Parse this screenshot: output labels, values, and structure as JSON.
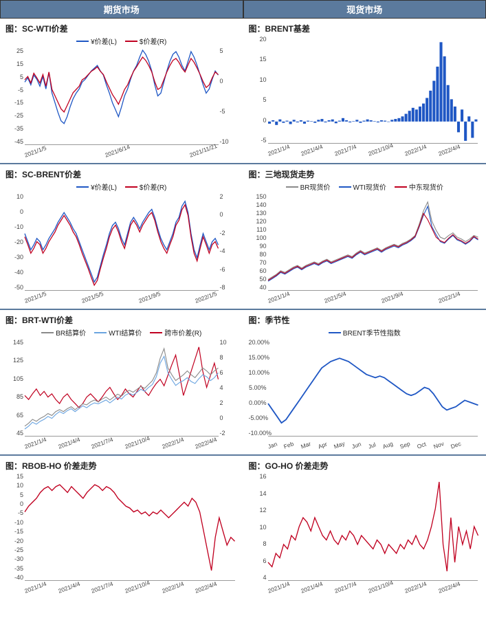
{
  "headers": {
    "left": "期货市场",
    "right": "现货市场"
  },
  "colors": {
    "blue": "#1f57c4",
    "red": "#c00020",
    "gray": "#8a8a8a",
    "lightblue": "#6aa4e0",
    "header_bg": "#5b7a9d",
    "grid": "#999999",
    "text": "#222222"
  },
  "panels": [
    {
      "title": "图：SC-WTI价差",
      "legend": [
        {
          "label": "¥价差(L)",
          "color": "#1f57c4"
        },
        {
          "label": "$价差(R)",
          "color": "#c00020"
        }
      ],
      "yLeft": {
        "min": -45,
        "max": 25,
        "step": 10
      },
      "yRight": {
        "min": -10,
        "max": 5,
        "step": 5
      },
      "xLabels": [
        "2021/1/5",
        "2021/6/14",
        "2021/11/21"
      ],
      "series": [
        {
          "color": "#1f57c4",
          "axis": "left",
          "width": 1.3,
          "values": [
            0,
            3,
            -2,
            5,
            2,
            -3,
            4,
            -5,
            7,
            -8,
            -15,
            -22,
            -28,
            -30,
            -25,
            -18,
            -12,
            -8,
            -5,
            0,
            2,
            5,
            8,
            10,
            12,
            8,
            5,
            -2,
            -8,
            -15,
            -20,
            -25,
            -18,
            -10,
            -5,
            2,
            8,
            12,
            18,
            23,
            20,
            15,
            8,
            -2,
            -10,
            -8,
            0,
            8,
            15,
            20,
            22,
            18,
            12,
            8,
            15,
            22,
            18,
            12,
            5,
            -2,
            -8,
            -5,
            2,
            8,
            5
          ]
        },
        {
          "color": "#c00020",
          "axis": "right",
          "width": 1.3,
          "values": [
            0,
            0.5,
            -0.5,
            1,
            0.3,
            -0.5,
            0.8,
            -1,
            1.2,
            -1.5,
            -2.5,
            -3.5,
            -4.5,
            -5,
            -4,
            -3,
            -2,
            -1.5,
            -1,
            0,
            0.3,
            0.8,
            1.3,
            1.6,
            2,
            1.3,
            0.8,
            -0.3,
            -1.3,
            -2.3,
            -3,
            -3.8,
            -2.7,
            -1.5,
            -0.8,
            0.3,
            1.3,
            2,
            2.8,
            3.5,
            3,
            2.2,
            1.2,
            -0.3,
            -1.5,
            -1.2,
            0,
            1.2,
            2.2,
            3,
            3.3,
            2.7,
            1.8,
            1.2,
            2.3,
            3.3,
            2.7,
            1.8,
            0.8,
            -0.3,
            -1.2,
            -0.8,
            0.3,
            1.2,
            0.8
          ]
        }
      ]
    },
    {
      "title": "图：BRENT基差",
      "legend": [],
      "yLeft": {
        "min": -5,
        "max": 20,
        "step": 5
      },
      "yRight": null,
      "xLabels": [
        "2021/1/4",
        "2021/4/4",
        "2021/7/4",
        "2021/10/4",
        "2022/1/4",
        "2022/4/4"
      ],
      "series": [
        {
          "type": "bar",
          "color": "#1f57c4",
          "values": [
            -0.5,
            0.3,
            -0.8,
            0.5,
            -0.3,
            0.2,
            -0.6,
            0.4,
            -0.2,
            0.3,
            -0.5,
            0.2,
            0.1,
            -0.3,
            0.4,
            0.6,
            -0.2,
            0.3,
            0.5,
            -0.4,
            0.2,
            0.8,
            0.3,
            -0.2,
            0.1,
            0.4,
            -0.3,
            0.2,
            0.5,
            0.3,
            0.1,
            -0.2,
            0.3,
            0.2,
            -0.1,
            0.4,
            0.6,
            0.8,
            1.2,
            1.8,
            2.5,
            3.2,
            2.8,
            3.5,
            4.2,
            5.5,
            7.2,
            9.5,
            12.8,
            18.5,
            15.2,
            8.5,
            5.2,
            3.5,
            -2.5,
            2.8,
            -4.5,
            1.2,
            -3.8,
            0.5
          ]
        }
      ]
    },
    {
      "title": "图：SC-BRENT价差",
      "legend": [
        {
          "label": "¥价差(L)",
          "color": "#1f57c4"
        },
        {
          "label": "$价差(R)",
          "color": "#c00020"
        }
      ],
      "yLeft": {
        "min": -50,
        "max": 10,
        "step": 10
      },
      "yRight": {
        "min": -8,
        "max": 2,
        "step": 2
      },
      "xLabels": [
        "2021/1/5",
        "2021/5/5",
        "2021/9/5",
        "2022/1/5"
      ],
      "series": [
        {
          "color": "#1f57c4",
          "axis": "left",
          "width": 1.3,
          "values": [
            -15,
            -20,
            -25,
            -22,
            -18,
            -20,
            -25,
            -22,
            -18,
            -15,
            -12,
            -8,
            -5,
            -2,
            -5,
            -8,
            -12,
            -15,
            -20,
            -25,
            -30,
            -35,
            -40,
            -45,
            -42,
            -35,
            -28,
            -22,
            -15,
            -10,
            -8,
            -12,
            -18,
            -22,
            -15,
            -8,
            -5,
            -8,
            -12,
            -8,
            -5,
            -2,
            0,
            -5,
            -12,
            -18,
            -22,
            -25,
            -20,
            -15,
            -8,
            -5,
            2,
            5,
            -2,
            -15,
            -25,
            -30,
            -22,
            -15,
            -20,
            -25,
            -20,
            -18,
            -22
          ]
        },
        {
          "color": "#c00020",
          "axis": "right",
          "width": 1.3,
          "values": [
            -2.5,
            -3.3,
            -4.2,
            -3.7,
            -3,
            -3.3,
            -4.2,
            -3.7,
            -3,
            -2.5,
            -2,
            -1.3,
            -0.8,
            -0.3,
            -0.8,
            -1.3,
            -2,
            -2.5,
            -3.3,
            -4.2,
            -5,
            -5.8,
            -6.7,
            -7.5,
            -7,
            -5.8,
            -4.7,
            -3.7,
            -2.5,
            -1.7,
            -1.3,
            -2,
            -3,
            -3.7,
            -2.5,
            -1.3,
            -0.8,
            -1.3,
            -2,
            -1.3,
            -0.8,
            -0.3,
            0,
            -0.8,
            -2,
            -3,
            -3.7,
            -4.2,
            -3.3,
            -2.5,
            -1.3,
            -0.8,
            0.3,
            0.8,
            -0.3,
            -2.5,
            -4.2,
            -5,
            -3.7,
            -2.5,
            -3.3,
            -4.2,
            -3.3,
            -3,
            -3.7
          ]
        }
      ]
    },
    {
      "title": "图：三地现货走势",
      "legend": [
        {
          "label": "BR现货价",
          "color": "#8a8a8a"
        },
        {
          "label": "WTI现货价",
          "color": "#1f57c4"
        },
        {
          "label": "中东现货价",
          "color": "#c00020"
        }
      ],
      "yLeft": {
        "min": 40,
        "max": 150,
        "step": 10
      },
      "yRight": null,
      "xLabels": [
        "2021/1/4",
        "2021/5/4",
        "2021/9/4",
        "2022/1/4"
      ],
      "series": [
        {
          "color": "#8a8a8a",
          "axis": "left",
          "width": 1.1,
          "values": [
            52,
            55,
            58,
            62,
            60,
            63,
            66,
            68,
            65,
            68,
            70,
            72,
            70,
            73,
            75,
            72,
            74,
            76,
            78,
            80,
            78,
            82,
            85,
            82,
            84,
            86,
            88,
            85,
            88,
            90,
            92,
            90,
            93,
            95,
            98,
            102,
            115,
            130,
            140,
            118,
            108,
            100,
            98,
            102,
            105,
            100,
            98,
            95,
            98,
            102,
            100
          ]
        },
        {
          "color": "#1f57c4",
          "axis": "left",
          "width": 1.1,
          "values": [
            50,
            53,
            56,
            60,
            58,
            61,
            64,
            66,
            63,
            66,
            68,
            70,
            68,
            71,
            73,
            70,
            72,
            74,
            76,
            78,
            76,
            80,
            83,
            80,
            82,
            84,
            86,
            83,
            86,
            88,
            90,
            88,
            91,
            93,
            96,
            100,
            112,
            125,
            135,
            112,
            103,
            95,
            93,
            98,
            102,
            97,
            95,
            92,
            95,
            100,
            97
          ]
        },
        {
          "color": "#c00020",
          "axis": "left",
          "width": 1.1,
          "values": [
            51,
            54,
            57,
            61,
            59,
            62,
            65,
            67,
            64,
            67,
            69,
            71,
            69,
            72,
            74,
            71,
            73,
            75,
            77,
            79,
            77,
            81,
            84,
            81,
            83,
            85,
            87,
            84,
            87,
            89,
            91,
            89,
            92,
            94,
            97,
            101,
            113,
            127,
            120,
            110,
            100,
            96,
            94,
            99,
            103,
            98,
            96,
            93,
            96,
            101,
            98
          ]
        }
      ]
    },
    {
      "title": "图：BRT-WTI价差",
      "legend": [
        {
          "label": "BR结算价",
          "color": "#8a8a8a"
        },
        {
          "label": "WTI结算价",
          "color": "#6aa4e0"
        },
        {
          "label": "跨市价差(R)",
          "color": "#c00020"
        }
      ],
      "yLeft": {
        "min": 45,
        "max": 145,
        "step": 20
      },
      "yRight": {
        "min": -2,
        "max": 10,
        "step": 2
      },
      "xLabels": [
        "2021/1/4",
        "2021/4/4",
        "2021/7/4",
        "2021/10/4",
        "2022/1/4",
        "2022/4/4"
      ],
      "series": [
        {
          "color": "#c00020",
          "axis": "right",
          "width": 1.2,
          "values": [
            3,
            2.5,
            3.2,
            3.8,
            3,
            3.5,
            2.8,
            3.2,
            2.5,
            2,
            2.8,
            3.2,
            2.5,
            2,
            1.5,
            2,
            2.8,
            3.2,
            2.7,
            2.2,
            2.8,
            3.5,
            4,
            3.2,
            2.5,
            3,
            3.8,
            3.2,
            2.8,
            3.5,
            4.2,
            3.5,
            3,
            3.8,
            4.5,
            5,
            4.2,
            5.5,
            6.8,
            8,
            5.5,
            3,
            4.5,
            6,
            7.5,
            9,
            6,
            4,
            5.5,
            7,
            5
          ]
        },
        {
          "color": "#8a8a8a",
          "axis": "left",
          "width": 1.1,
          "values": [
            55,
            58,
            62,
            60,
            63,
            65,
            68,
            66,
            70,
            72,
            70,
            73,
            75,
            72,
            75,
            78,
            77,
            80,
            82,
            80,
            83,
            85,
            82,
            85,
            88,
            86,
            90,
            92,
            90,
            93,
            96,
            94,
            98,
            102,
            110,
            125,
            135,
            115,
            108,
            102,
            105,
            108,
            112,
            108,
            105,
            110,
            115,
            112,
            108,
            112,
            115
          ]
        },
        {
          "color": "#6aa4e0",
          "axis": "left",
          "width": 1.1,
          "values": [
            52,
            55,
            59,
            57,
            60,
            62,
            65,
            63,
            67,
            70,
            68,
            71,
            73,
            70,
            73,
            76,
            74,
            77,
            79,
            78,
            80,
            82,
            79,
            82,
            85,
            83,
            87,
            89,
            87,
            90,
            93,
            91,
            95,
            98,
            106,
            120,
            127,
            110,
            103,
            97,
            100,
            102,
            105,
            101,
            99,
            104,
            108,
            106,
            102,
            105,
            110
          ]
        }
      ]
    },
    {
      "title": "图：季节性",
      "legend": [
        {
          "label": "BRENT季节性指数",
          "color": "#1f57c4"
        }
      ],
      "yLeft": {
        "min": -10,
        "max": 20,
        "step": 5,
        "format": "percent"
      },
      "yRight": null,
      "xLabels": [
        "Jan",
        "Feb",
        "Mar",
        "Apr",
        "May",
        "Jun",
        "Jul",
        "Aug",
        "Sep",
        "Oct",
        "Nov",
        "Dec"
      ],
      "series": [
        {
          "color": "#1f57c4",
          "axis": "left",
          "width": 1.8,
          "values": [
            0,
            -2,
            -4,
            -6,
            -5,
            -3,
            -1,
            1,
            3,
            5,
            7,
            9,
            11,
            12,
            13,
            13.5,
            14,
            13.5,
            13,
            12,
            11,
            10,
            9,
            8.5,
            8,
            8.5,
            8,
            7,
            6,
            5,
            4,
            3,
            2.5,
            3,
            4,
            5,
            4.5,
            3,
            1,
            -1,
            -2,
            -1.5,
            -1,
            0,
            1,
            0.5,
            0,
            -0.5
          ]
        }
      ]
    },
    {
      "title": "图：RBOB-HO 价差走势",
      "legend": [],
      "yLeft": {
        "min": -40,
        "max": 15,
        "step": 5
      },
      "yRight": null,
      "xLabels": [
        "2021/1/4",
        "2021/4/4",
        "2021/7/4",
        "2021/10/4",
        "2022/1/4",
        "2022/4/4"
      ],
      "series": [
        {
          "color": "#c00020",
          "axis": "left",
          "width": 1.3,
          "values": [
            -5,
            -2,
            0,
            2,
            5,
            7,
            8,
            6,
            8,
            9,
            7,
            5,
            8,
            6,
            4,
            2,
            5,
            7,
            9,
            8,
            6,
            8,
            7,
            5,
            2,
            0,
            -2,
            -3,
            -5,
            -4,
            -6,
            -5,
            -7,
            -5,
            -6,
            -4,
            -6,
            -8,
            -6,
            -4,
            -2,
            0,
            -2,
            2,
            0,
            -5,
            -15,
            -25,
            -35,
            -18,
            -8,
            -15,
            -22,
            -18,
            -20
          ]
        }
      ]
    },
    {
      "title": "图：GO-HO 价差走势",
      "legend": [],
      "yLeft": {
        "min": 4,
        "max": 16,
        "step": 2
      },
      "yRight": null,
      "xLabels": [
        "2021/1/4",
        "2021/4/4",
        "2021/7/4",
        "2021/10/4",
        "2022/1/4",
        "2022/4/4"
      ],
      "series": [
        {
          "color": "#c00020",
          "axis": "left",
          "width": 1.3,
          "values": [
            6,
            5.5,
            7,
            6.5,
            8,
            7.5,
            9,
            8.5,
            10,
            11,
            10.5,
            9.5,
            11,
            10,
            9,
            8.5,
            9.5,
            8.5,
            8,
            9,
            8.5,
            9.5,
            9,
            8,
            9,
            8.5,
            8,
            7.5,
            8.5,
            8,
            7,
            8,
            7.5,
            7,
            8,
            7.5,
            8.5,
            8,
            9,
            8,
            7.5,
            8.5,
            10,
            12,
            15,
            8,
            5,
            11,
            6,
            10,
            8,
            9.5,
            7.5,
            10,
            9
          ]
        }
      ]
    }
  ]
}
